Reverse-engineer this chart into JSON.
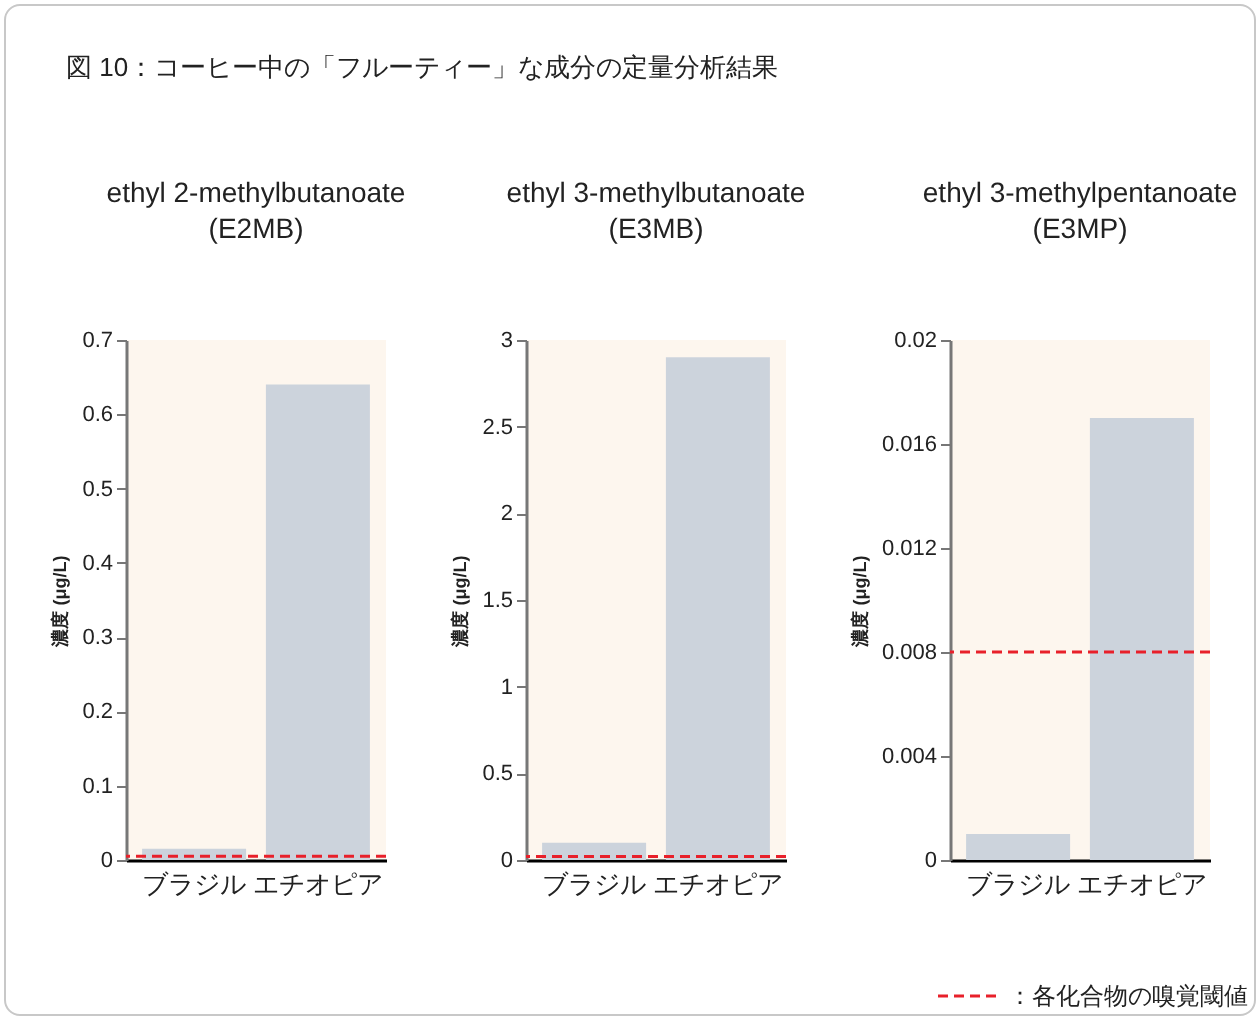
{
  "chart_data": [
    {
      "type": "bar",
      "title": "ethyl 2-methylbutanoate\n(E2MB)",
      "annotations": [
        "図 10：コーヒー中の「フルーティー」な成分の定量分析結果"
      ],
      "ylabel": "濃度 (μg/L)",
      "categories": [
        "ブラジル",
        "エチオピア"
      ],
      "values": [
        0.015,
        0.64
      ],
      "color": "#ccd3dc",
      "ylim": [
        0,
        0.7
      ],
      "yticks": [
        0,
        0.1,
        0.2,
        0.3,
        0.4,
        0.5,
        0.6,
        0.7
      ],
      "ref_lines": [
        {
          "axis": "y",
          "value": 0.005,
          "color": "#e8202a",
          "line_style": "dashed"
        }
      ]
    },
    {
      "type": "bar",
      "title": "ethyl 3-methylbutanoate\n(E3MB)",
      "ylabel": "濃度 (μg/L)",
      "categories": [
        "ブラジル",
        "エチオピア"
      ],
      "values": [
        0.1,
        2.9
      ],
      "color": "#ccd3dc",
      "ylim": [
        0,
        3
      ],
      "yticks": [
        0,
        0.5,
        1,
        1.5,
        2,
        2.5,
        3
      ],
      "ref_lines": [
        {
          "axis": "y",
          "value": 0.02,
          "color": "#e8202a",
          "line_style": "dashed"
        }
      ]
    },
    {
      "type": "bar",
      "title": "ethyl 3-methylpentanoate\n(E3MP)",
      "ylabel": "濃度 (μg/L)",
      "categories": [
        "ブラジル",
        "エチオピア"
      ],
      "values": [
        0.001,
        0.017
      ],
      "color": "#ccd3dc",
      "ylim": [
        0,
        0.02
      ],
      "yticks": [
        0,
        0.004,
        0.008,
        0.012,
        0.016,
        0.02
      ],
      "ref_lines": [
        {
          "axis": "y",
          "value": 0.008,
          "color": "#e8202a",
          "line_style": "dashed",
          "label": "：各化合物の嗅覚閾値"
        }
      ],
      "legend": "bottom right"
    }
  ]
}
